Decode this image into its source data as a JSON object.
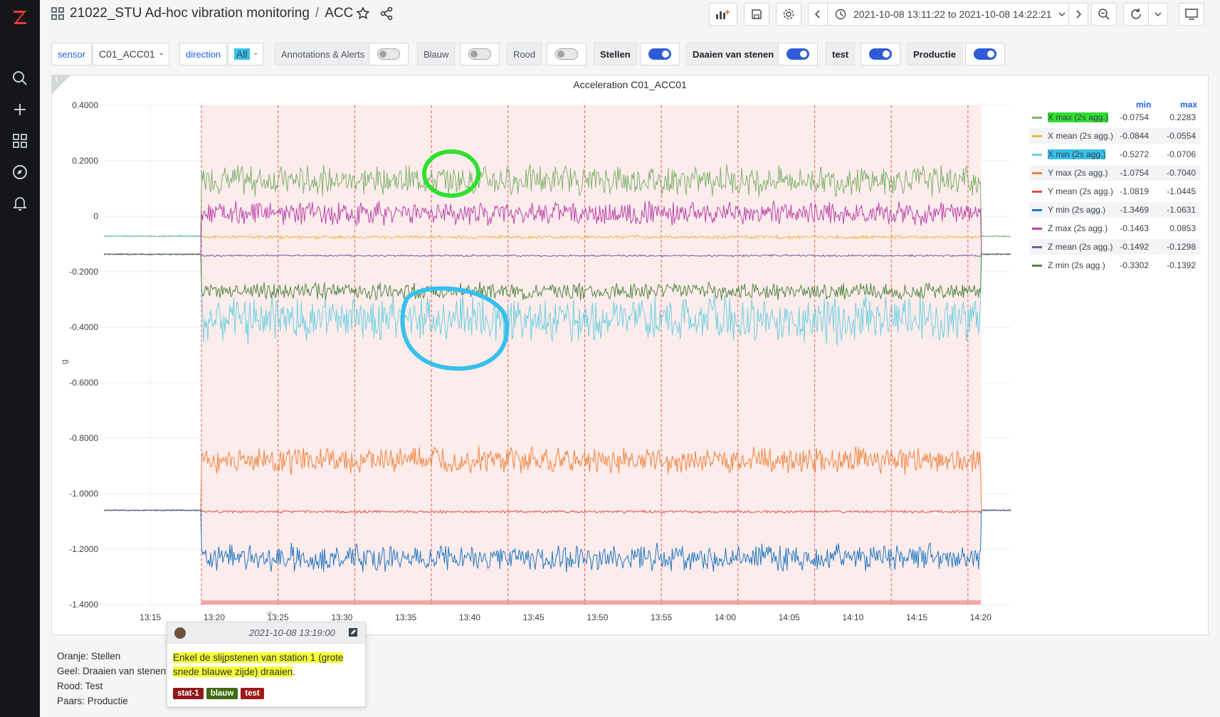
{
  "colors": {
    "accent": "#1f62e0",
    "sidebar_bg": "#141619",
    "brand": "#ef3a3a"
  },
  "sidebar": {
    "items": [
      {
        "icon": "search-icon"
      },
      {
        "icon": "plus-icon"
      },
      {
        "icon": "dashboards-icon"
      },
      {
        "icon": "explore-icon"
      },
      {
        "icon": "bell-icon"
      }
    ]
  },
  "header": {
    "folder": "21022_STU Ad-hoc vibration monitoring",
    "separator": "/",
    "dashboard": "ACC",
    "time_range": "2021-10-08 13:11:22 to 2021-10-08 14:22:21"
  },
  "variables": {
    "sensor_label": "sensor",
    "sensor_value": "C01_ACC01",
    "direction_label": "direction",
    "direction_value": "All",
    "toggles": [
      {
        "label": "Annotations & Alerts",
        "on": false
      },
      {
        "label": "Blauw",
        "on": false
      },
      {
        "label": "Rood",
        "on": false
      },
      {
        "label": "Stellen",
        "on": true
      },
      {
        "label": "Daaien van stenen",
        "on": true
      },
      {
        "label": "test",
        "on": true
      },
      {
        "label": "Productie",
        "on": true
      }
    ]
  },
  "panel": {
    "title": "Acceleration C01_ACC01",
    "info": "i"
  },
  "chart_data": {
    "type": "line",
    "title": "Acceleration C01_ACC01",
    "ylabel": "g",
    "xlabel": "",
    "y_ticks": [
      "0.4000",
      "0.2000",
      "0",
      "-0.2000",
      "-0.4000",
      "-0.6000",
      "-0.8000",
      "-1.0000",
      "-1.2000",
      "-1.4000"
    ],
    "x_ticks": [
      "13:15",
      "13:20",
      "13:25",
      "13:30",
      "13:35",
      "13:40",
      "13:45",
      "13:50",
      "13:55",
      "14:00",
      "14:05",
      "14:10",
      "14:15",
      "14:20"
    ],
    "ylim": [
      -1.4,
      0.4
    ],
    "xlim": [
      "13:11:22",
      "14:22:21"
    ],
    "active_region": [
      "13:19:00",
      "14:20:00"
    ],
    "legend_placement": "right",
    "legend_headers": {
      "min": "min",
      "max": "max"
    },
    "series": [
      {
        "name": "X max (2s agg.)",
        "color": "#7eb26d",
        "min": "-0.0754",
        "max": "0.2283",
        "idle": -0.072,
        "level": 0.13,
        "noise": 0.045
      },
      {
        "name": "X mean (2s agg.)",
        "color": "#eab839",
        "min": "-0.0844",
        "max": "-0.0554",
        "idle": -0.072,
        "level": -0.075,
        "noise": 0.005
      },
      {
        "name": "X min (2s agg.)",
        "color": "#6ed0e0",
        "min": "-0.5272",
        "max": "-0.0706",
        "idle": -0.072,
        "level": -0.37,
        "noise": 0.07
      },
      {
        "name": "Y max (2s agg.)",
        "color": "#ef843c",
        "min": "-1.0754",
        "max": "-0.7040",
        "idle": -1.06,
        "level": -0.88,
        "noise": 0.04
      },
      {
        "name": "Y mean (2s agg.)",
        "color": "#e24d42",
        "min": "-1.0819",
        "max": "-1.0445",
        "idle": -1.06,
        "level": -1.065,
        "noise": 0.004
      },
      {
        "name": "Y min (2s agg.)",
        "color": "#1f78c1",
        "min": "-1.3469",
        "max": "-1.0631",
        "idle": -1.06,
        "level": -1.23,
        "noise": 0.04
      },
      {
        "name": "Z max (2s agg.)",
        "color": "#ba43a9",
        "min": "-0.1463",
        "max": "0.0853",
        "idle": -0.137,
        "level": 0.01,
        "noise": 0.035
      },
      {
        "name": "Z mean (2s agg.)",
        "color": "#705da0",
        "min": "-0.1492",
        "max": "-0.1298",
        "idle": -0.137,
        "level": -0.142,
        "noise": 0.003
      },
      {
        "name": "Z min (2s agg.)",
        "color": "#508642",
        "min": "-0.3302",
        "max": "-0.1392",
        "idle": -0.137,
        "level": -0.27,
        "noise": 0.025
      }
    ]
  },
  "notes": [
    "Oranje: Stellen",
    "Geel: Draaien van stenen",
    "Rood: Test",
    "Paars: Productie"
  ],
  "tooltip": {
    "time": "2021-10-08 13:19:00",
    "text_hl_1": "Enkel de slijpstenen van station 1 (grote",
    "text_hl_2": "snede blauwe zijde) draaien",
    "text_tail": ".",
    "tags": [
      {
        "label": "stat-1",
        "color": "#8f1a1a"
      },
      {
        "label": "blauw",
        "color": "#3f6b10"
      },
      {
        "label": "test",
        "color": "#a01a1a"
      }
    ]
  }
}
